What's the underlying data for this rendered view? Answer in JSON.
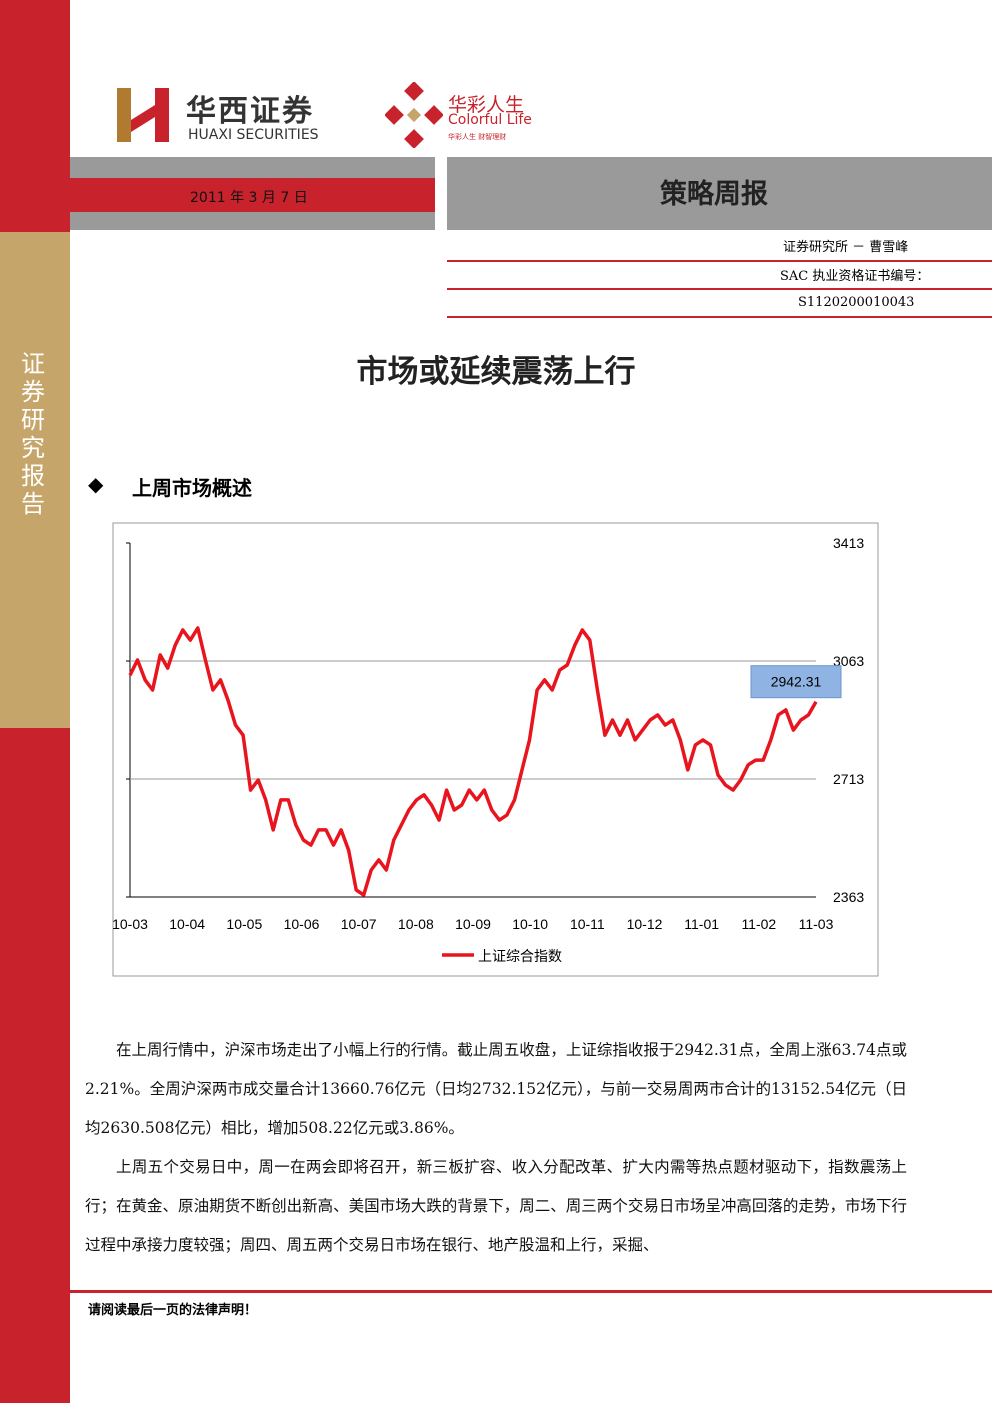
{
  "header": {
    "logo_cn": "华西证券",
    "logo_en": "HUAXI SECURITIES",
    "brand_cn": "华彩人生",
    "brand_en": "Colorful Life",
    "brand_slogan": "华彩人生 财智理财",
    "date": "2011 年 3 月 7 日",
    "report_type": "策略周报",
    "analyst": "证券研究所 － 曹雪峰",
    "cert_label": "SAC 执业资格证书编号：",
    "cert_no": "S1120200010043"
  },
  "side_label": "证券研究报告",
  "title": "市场或延续震荡上行",
  "section": "上周市场概述",
  "chart_data": {
    "type": "line",
    "x_labels": [
      "10-03",
      "10-04",
      "10-05",
      "10-06",
      "10-07",
      "10-08",
      "10-09",
      "10-10",
      "10-11",
      "10-12",
      "11-01",
      "11-02",
      "11-03"
    ],
    "series": [
      {
        "name": "上证综合指数",
        "color": "#e8141e",
        "values": [
          3021,
          3066,
          3007,
          2977,
          3081,
          3042,
          3110,
          3155,
          3125,
          3161,
          3066,
          2977,
          3007,
          2947,
          2873,
          2843,
          2680,
          2710,
          2651,
          2562,
          2651,
          2651,
          2577,
          2532,
          2517,
          2562,
          2562,
          2517,
          2562,
          2502,
          2384,
          2369,
          2443,
          2473,
          2443,
          2532,
          2577,
          2621,
          2651,
          2666,
          2636,
          2591,
          2680,
          2621,
          2636,
          2680,
          2651,
          2680,
          2621,
          2591,
          2606,
          2651,
          2740,
          2829,
          2977,
          3007,
          2977,
          3036,
          3051,
          3110,
          3155,
          3125,
          2977,
          2843,
          2888,
          2843,
          2888,
          2829,
          2858,
          2888,
          2903,
          2873,
          2888,
          2829,
          2740,
          2814,
          2829,
          2814,
          2725,
          2695,
          2680,
          2710,
          2755,
          2769,
          2769,
          2829,
          2903,
          2918,
          2858,
          2888,
          2903,
          2942.31
        ]
      }
    ],
    "ylim": [
      2363,
      3413
    ],
    "yticks": [
      2363,
      2713,
      3063,
      3413
    ],
    "grid": true,
    "highlight_last": true
  },
  "paragraphs": [
    "在上周行情中，沪深市场走出了小幅上行的行情。截止周五收盘，上证综指收报于2942.31点，全周上涨63.74点或2.21%。全周沪深两市成交量合计13660.76亿元（日均2732.152亿元），与前一交易周两市合计的13152.54亿元（日均2630.508亿元）相比，增加508.22亿元或3.86%。",
    "上周五个交易日中，周一在两会即将召开，新三板扩容、收入分配改革、扩大内需等热点题材驱动下，指数震荡上行；在黄金、原油期货不断创出新高、美国市场大跌的背景下，周二、周三两个交易日市场呈冲高回落的走势，市场下行过程中承接力度较强；周四、周五两个交易日市场在银行、地产股温和上行，采掘、"
  ],
  "footer": "请阅读最后一页的法律声明！"
}
